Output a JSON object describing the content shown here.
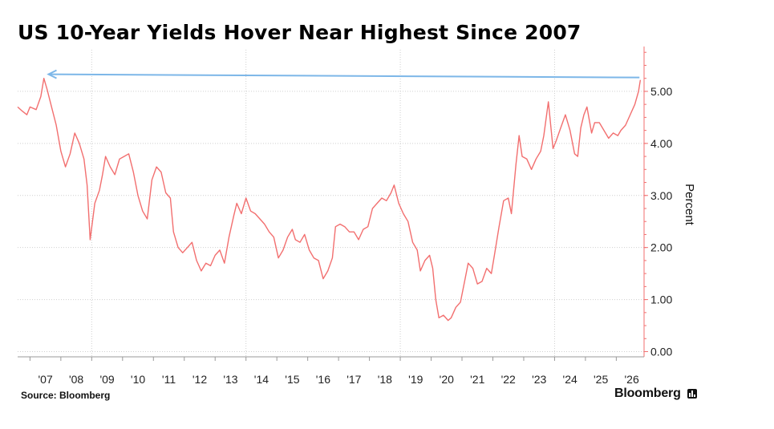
{
  "chart_data": {
    "type": "line",
    "title": "US 10-Year Yields Hover Near Highest Since 2007",
    "ylabel": "Percent",
    "ylim": [
      -0.1,
      5.8
    ],
    "xlim": [
      2006.6,
      2026.9
    ],
    "yticks": [
      0,
      1,
      2,
      3,
      4,
      5
    ],
    "ytick_labels": [
      "0.00",
      "1.00",
      "2.00",
      "3.00",
      "4.00",
      "5.00"
    ],
    "xticks": [
      2007,
      2008,
      2009,
      2010,
      2011,
      2012,
      2013,
      2014,
      2015,
      2016,
      2017,
      2018,
      2019,
      2020,
      2021,
      2022,
      2023,
      2024,
      2025,
      2026
    ],
    "xtick_labels": [
      "'07",
      "'08",
      "'09",
      "'10",
      "'11",
      "'12",
      "'13",
      "'14",
      "'15",
      "'16",
      "'17",
      "'18",
      "'19",
      "'20",
      "'21",
      "'22",
      "'23",
      "'24",
      "'25",
      "'26"
    ],
    "x_grid_years": [
      2009,
      2014,
      2019,
      2024
    ],
    "y_grid": true,
    "series": [
      {
        "color": "#f26f6f",
        "points": [
          [
            2006.6,
            4.7
          ],
          [
            2006.75,
            4.62
          ],
          [
            2006.9,
            4.55
          ],
          [
            2007.0,
            4.7
          ],
          [
            2007.2,
            4.65
          ],
          [
            2007.35,
            4.9
          ],
          [
            2007.45,
            5.25
          ],
          [
            2007.55,
            5.05
          ],
          [
            2007.7,
            4.7
          ],
          [
            2007.85,
            4.35
          ],
          [
            2008.0,
            3.85
          ],
          [
            2008.15,
            3.55
          ],
          [
            2008.3,
            3.8
          ],
          [
            2008.45,
            4.2
          ],
          [
            2008.6,
            4.0
          ],
          [
            2008.75,
            3.7
          ],
          [
            2008.85,
            3.2
          ],
          [
            2008.95,
            2.15
          ],
          [
            2009.1,
            2.85
          ],
          [
            2009.25,
            3.1
          ],
          [
            2009.35,
            3.4
          ],
          [
            2009.45,
            3.75
          ],
          [
            2009.6,
            3.55
          ],
          [
            2009.75,
            3.4
          ],
          [
            2009.9,
            3.7
          ],
          [
            2010.05,
            3.75
          ],
          [
            2010.2,
            3.8
          ],
          [
            2010.35,
            3.45
          ],
          [
            2010.5,
            3.0
          ],
          [
            2010.65,
            2.7
          ],
          [
            2010.8,
            2.55
          ],
          [
            2010.95,
            3.3
          ],
          [
            2011.1,
            3.55
          ],
          [
            2011.25,
            3.45
          ],
          [
            2011.4,
            3.05
          ],
          [
            2011.55,
            2.95
          ],
          [
            2011.65,
            2.3
          ],
          [
            2011.8,
            2.0
          ],
          [
            2011.95,
            1.9
          ],
          [
            2012.1,
            2.0
          ],
          [
            2012.25,
            2.1
          ],
          [
            2012.4,
            1.75
          ],
          [
            2012.55,
            1.55
          ],
          [
            2012.7,
            1.7
          ],
          [
            2012.85,
            1.65
          ],
          [
            2013.0,
            1.85
          ],
          [
            2013.15,
            1.95
          ],
          [
            2013.3,
            1.7
          ],
          [
            2013.45,
            2.2
          ],
          [
            2013.6,
            2.6
          ],
          [
            2013.7,
            2.85
          ],
          [
            2013.85,
            2.65
          ],
          [
            2014.0,
            2.95
          ],
          [
            2014.15,
            2.7
          ],
          [
            2014.3,
            2.65
          ],
          [
            2014.45,
            2.55
          ],
          [
            2014.6,
            2.45
          ],
          [
            2014.75,
            2.3
          ],
          [
            2014.9,
            2.2
          ],
          [
            2015.05,
            1.8
          ],
          [
            2015.2,
            1.95
          ],
          [
            2015.35,
            2.2
          ],
          [
            2015.5,
            2.35
          ],
          [
            2015.6,
            2.15
          ],
          [
            2015.75,
            2.1
          ],
          [
            2015.9,
            2.25
          ],
          [
            2016.05,
            1.95
          ],
          [
            2016.2,
            1.8
          ],
          [
            2016.35,
            1.75
          ],
          [
            2016.5,
            1.4
          ],
          [
            2016.65,
            1.55
          ],
          [
            2016.8,
            1.8
          ],
          [
            2016.9,
            2.4
          ],
          [
            2017.05,
            2.45
          ],
          [
            2017.2,
            2.4
          ],
          [
            2017.35,
            2.3
          ],
          [
            2017.5,
            2.3
          ],
          [
            2017.65,
            2.15
          ],
          [
            2017.8,
            2.35
          ],
          [
            2017.95,
            2.4
          ],
          [
            2018.1,
            2.75
          ],
          [
            2018.25,
            2.85
          ],
          [
            2018.4,
            2.95
          ],
          [
            2018.55,
            2.9
          ],
          [
            2018.7,
            3.05
          ],
          [
            2018.8,
            3.2
          ],
          [
            2018.95,
            2.85
          ],
          [
            2019.1,
            2.65
          ],
          [
            2019.25,
            2.5
          ],
          [
            2019.4,
            2.1
          ],
          [
            2019.55,
            1.95
          ],
          [
            2019.65,
            1.55
          ],
          [
            2019.8,
            1.75
          ],
          [
            2019.95,
            1.85
          ],
          [
            2020.05,
            1.6
          ],
          [
            2020.15,
            1.0
          ],
          [
            2020.25,
            0.65
          ],
          [
            2020.4,
            0.7
          ],
          [
            2020.55,
            0.6
          ],
          [
            2020.65,
            0.65
          ],
          [
            2020.8,
            0.85
          ],
          [
            2020.95,
            0.95
          ],
          [
            2021.1,
            1.4
          ],
          [
            2021.2,
            1.7
          ],
          [
            2021.35,
            1.6
          ],
          [
            2021.5,
            1.3
          ],
          [
            2021.65,
            1.35
          ],
          [
            2021.8,
            1.6
          ],
          [
            2021.95,
            1.5
          ],
          [
            2022.05,
            1.85
          ],
          [
            2022.2,
            2.4
          ],
          [
            2022.35,
            2.9
          ],
          [
            2022.5,
            2.95
          ],
          [
            2022.6,
            2.65
          ],
          [
            2022.75,
            3.6
          ],
          [
            2022.85,
            4.15
          ],
          [
            2022.95,
            3.75
          ],
          [
            2023.1,
            3.7
          ],
          [
            2023.25,
            3.5
          ],
          [
            2023.4,
            3.7
          ],
          [
            2023.55,
            3.85
          ],
          [
            2023.65,
            4.15
          ],
          [
            2023.8,
            4.8
          ],
          [
            2023.95,
            3.9
          ],
          [
            2024.05,
            4.05
          ],
          [
            2024.2,
            4.3
          ],
          [
            2024.35,
            4.55
          ],
          [
            2024.5,
            4.25
          ],
          [
            2024.65,
            3.8
          ],
          [
            2024.75,
            3.75
          ],
          [
            2024.85,
            4.3
          ],
          [
            2024.95,
            4.55
          ],
          [
            2025.05,
            4.7
          ],
          [
            2025.2,
            4.2
          ],
          [
            2025.3,
            4.4
          ],
          [
            2025.45,
            4.4
          ],
          [
            2025.6,
            4.25
          ],
          [
            2025.75,
            4.1
          ],
          [
            2025.9,
            4.2
          ],
          [
            2026.05,
            4.15
          ],
          [
            2026.15,
            4.25
          ],
          [
            2026.3,
            4.35
          ],
          [
            2026.45,
            4.55
          ],
          [
            2026.6,
            4.75
          ],
          [
            2026.72,
            5.0
          ],
          [
            2026.78,
            5.22
          ]
        ]
      }
    ],
    "annotations": [
      {
        "type": "arrow",
        "from": [
          2026.75,
          5.22
        ],
        "to": [
          2007.6,
          5.22
        ],
        "color": "#7db7e8"
      }
    ]
  },
  "footer": {
    "source": "Source:  Bloomberg",
    "brand": "Bloomberg"
  }
}
